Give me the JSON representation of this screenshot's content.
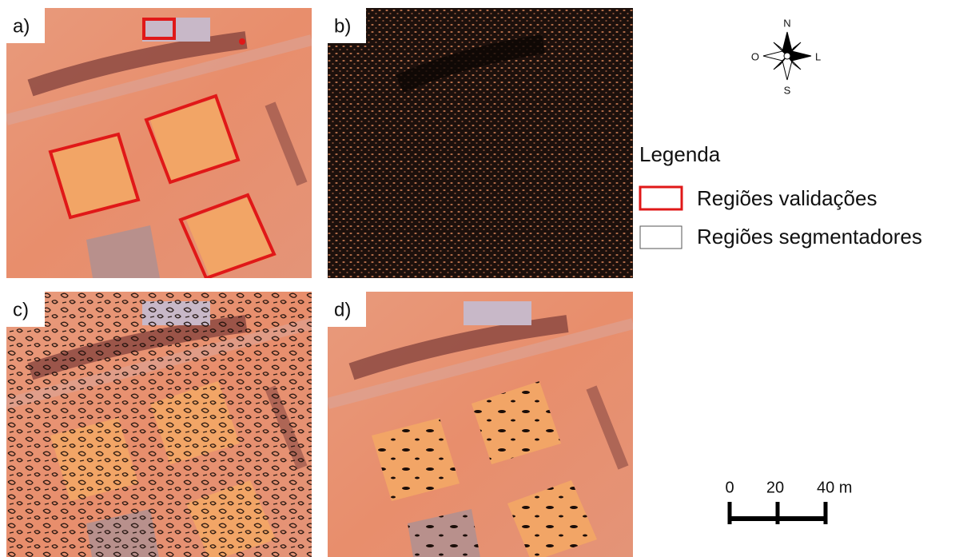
{
  "panels": [
    {
      "label": "a)"
    },
    {
      "label": "b)"
    },
    {
      "label": "c)"
    },
    {
      "label": "d)"
    }
  ],
  "compass": {
    "north": "N",
    "south": "S",
    "west": "O",
    "east": "L"
  },
  "legend": {
    "title": "Legenda",
    "items": [
      "Regiões validações",
      "Regiões segmentadores"
    ]
  },
  "scale_bar": {
    "labels": [
      "0",
      "20",
      "40 m"
    ]
  }
}
